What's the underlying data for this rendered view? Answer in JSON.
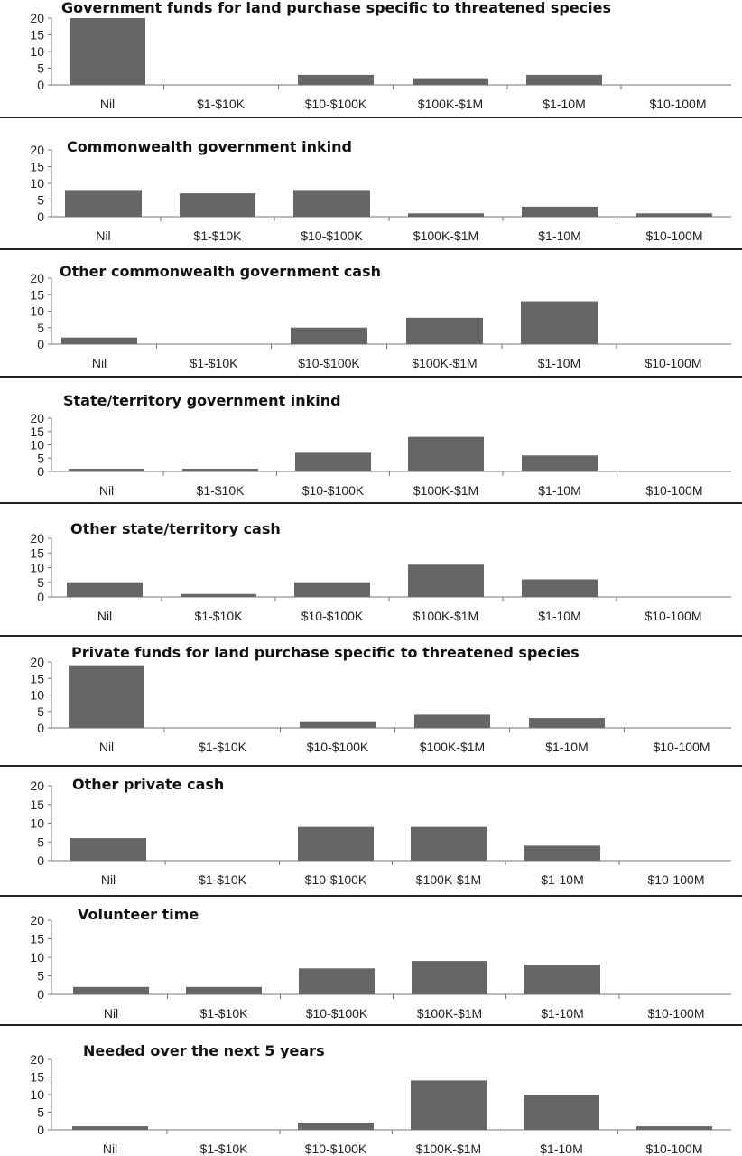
{
  "chart_data": [
    {
      "type": "bar",
      "title": "Government funds for land purchase specific to threatened species",
      "categories": [
        "Nil",
        "$1-$10K",
        "$10-$100K",
        "$100K-$1M",
        "$1-10M",
        "$10-100M"
      ],
      "values": [
        20,
        0,
        3,
        2,
        3,
        0
      ],
      "ylim": [
        0,
        20
      ],
      "yticks": [
        "0",
        "5",
        "10",
        "15",
        "20"
      ],
      "bar_color": "#666666"
    },
    {
      "type": "bar",
      "title": "Commonwealth government inkind",
      "categories": [
        "Nil",
        "$1-$10K",
        "$10-$100K",
        "$100K-$1M",
        "$1-10M",
        "$10-100M"
      ],
      "values": [
        8,
        7,
        8,
        1,
        3,
        1
      ],
      "ylim": [
        0,
        20
      ],
      "yticks": [
        "0",
        "5",
        "10",
        "15",
        "20"
      ],
      "bar_color": "#666666"
    },
    {
      "type": "bar",
      "title": "Other commonwealth government cash",
      "categories": [
        "Nil",
        "$1-$10K",
        "$10-$100K",
        "$100K-$1M",
        "$1-10M",
        "$10-100M"
      ],
      "values": [
        2,
        0,
        5,
        8,
        13,
        0
      ],
      "ylim": [
        0,
        20
      ],
      "yticks": [
        "0",
        "5",
        "10",
        "15",
        "20"
      ],
      "bar_color": "#666666"
    },
    {
      "type": "bar",
      "title": "State/territory government inkind",
      "categories": [
        "Nil",
        "$1-$10K",
        "$10-$100K",
        "$100K-$1M",
        "$1-10M",
        "$10-100M"
      ],
      "values": [
        1,
        1,
        7,
        13,
        6,
        0
      ],
      "ylim": [
        0,
        20
      ],
      "yticks": [
        "0",
        "5",
        "10",
        "15",
        "20"
      ],
      "bar_color": "#666666"
    },
    {
      "type": "bar",
      "title": "Other state/territory cash",
      "categories": [
        "Nil",
        "$1-$10K",
        "$10-$100K",
        "$100K-$1M",
        "$1-10M",
        "$10-100M"
      ],
      "values": [
        5,
        1,
        5,
        11,
        6,
        0
      ],
      "ylim": [
        0,
        20
      ],
      "yticks": [
        "0",
        "5",
        "10",
        "15",
        "20"
      ],
      "bar_color": "#666666"
    },
    {
      "type": "bar",
      "title": "Private funds for land purchase specific to threatened species",
      "categories": [
        "Nil",
        "$1-$10K",
        "$10-$100K",
        "$100K-$1M",
        "$1-10M",
        "$10-100M"
      ],
      "values": [
        19,
        0,
        2,
        4,
        3,
        0
      ],
      "ylim": [
        0,
        20
      ],
      "yticks": [
        "0",
        "5",
        "10",
        "15",
        "20"
      ],
      "bar_color": "#666666"
    },
    {
      "type": "bar",
      "title": "Other private cash",
      "categories": [
        "Nil",
        "$1-$10K",
        "$10-$100K",
        "$100K-$1M",
        "$1-10M",
        "$10-100M"
      ],
      "values": [
        6,
        0,
        9,
        9,
        4,
        0
      ],
      "ylim": [
        0,
        20
      ],
      "yticks": [
        "0",
        "5",
        "10",
        "15",
        "20"
      ],
      "bar_color": "#666666"
    },
    {
      "type": "bar",
      "title": "Volunteer time",
      "categories": [
        "Nil",
        "$1-$10K",
        "$10-$100K",
        "$100K-$1M",
        "$1-10M",
        "$10-100M"
      ],
      "values": [
        2,
        2,
        7,
        9,
        8,
        0
      ],
      "ylim": [
        0,
        20
      ],
      "yticks": [
        "0",
        "5",
        "10",
        "15",
        "20"
      ],
      "bar_color": "#666666"
    },
    {
      "type": "bar",
      "title": "Needed over the next 5 years",
      "categories": [
        "Nil",
        "$1-$10K",
        "$10-$100K",
        "$100K-$1M",
        "$1-10M",
        "$10-100M"
      ],
      "values": [
        1,
        0,
        2,
        14,
        10,
        1
      ],
      "ylim": [
        0,
        20
      ],
      "yticks": [
        "0",
        "5",
        "10",
        "15",
        "20"
      ],
      "bar_color": "#666666"
    }
  ]
}
